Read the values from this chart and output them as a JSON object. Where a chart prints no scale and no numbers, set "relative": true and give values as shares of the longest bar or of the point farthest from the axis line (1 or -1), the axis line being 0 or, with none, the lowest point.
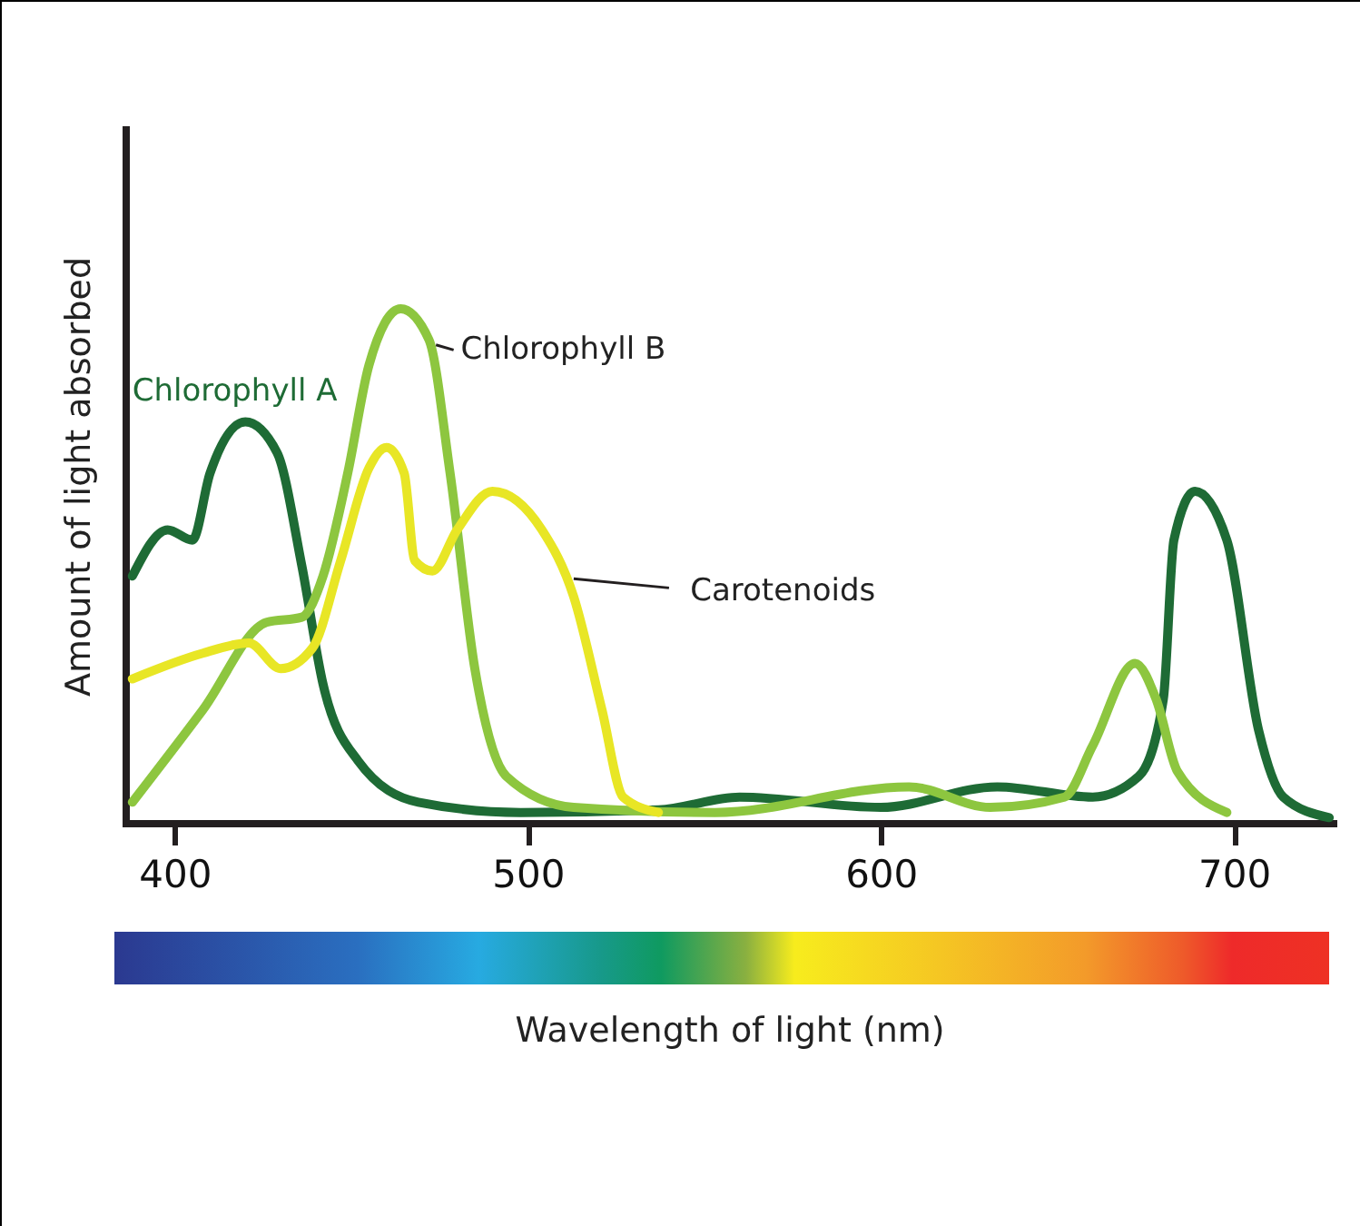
{
  "chart_data": {
    "type": "line",
    "relative": true,
    "xlabel": "Wavelength of light (nm)",
    "ylabel": "Amount of light absorbed",
    "xlim": [
      386,
      728
    ],
    "xticks": [
      400,
      500,
      600,
      700
    ],
    "series": [
      {
        "name": "Chlorophyll A",
        "color": "#1e6b35",
        "x": [
          388,
          398,
          405,
          410,
          420,
          429,
          436,
          442,
          452,
          469,
          498,
          537,
          560,
          600,
          633,
          660,
          673,
          680,
          683,
          689,
          698,
          707,
          714,
          727
        ],
        "values": [
          0.48,
          0.57,
          0.55,
          0.68,
          0.78,
          0.72,
          0.5,
          0.27,
          0.12,
          0.04,
          0.02,
          0.025,
          0.05,
          0.03,
          0.07,
          0.05,
          0.09,
          0.24,
          0.55,
          0.645,
          0.55,
          0.18,
          0.05,
          0.01
        ]
      },
      {
        "name": "Chlorophyll B",
        "color": "#8dc63f",
        "x": [
          388,
          408,
          426,
          436,
          442,
          449,
          455,
          464,
          472,
          478,
          485,
          494,
          513,
          553,
          608,
          631,
          652,
          660,
          672,
          678,
          684,
          698
        ],
        "values": [
          0.04,
          0.22,
          0.39,
          0.4,
          0.48,
          0.68,
          0.89,
          1.0,
          0.94,
          0.68,
          0.3,
          0.09,
          0.03,
          0.02,
          0.07,
          0.03,
          0.05,
          0.15,
          0.31,
          0.24,
          0.1,
          0.02
        ]
      },
      {
        "name": "Carotenoids",
        "color": "#e8e625",
        "x": [
          388,
          408,
          421,
          430,
          439,
          447,
          455,
          460,
          465,
          468,
          473,
          480,
          490,
          504,
          513,
          521,
          527,
          537
        ],
        "values": [
          0.28,
          0.33,
          0.35,
          0.3,
          0.34,
          0.51,
          0.69,
          0.73,
          0.68,
          0.51,
          0.49,
          0.57,
          0.645,
          0.57,
          0.44,
          0.22,
          0.05,
          0.02
        ]
      }
    ]
  }
}
